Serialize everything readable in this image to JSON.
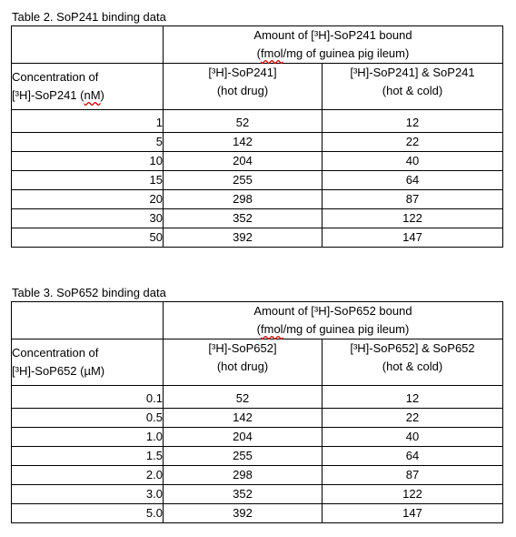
{
  "table2": {
    "caption": "Table 2. SoP241 binding data",
    "amount_header_line1": "Amount of [³H]-SoP241 bound",
    "amount_header_line2_pre": "(",
    "amount_header_line2_fmol": "fmol",
    "amount_header_line2_post": "/mg of guinea pig ileum)",
    "conc_header_line1": "Concentration of",
    "conc_header_line2_pre": "[³H]-SoP241 (",
    "conc_header_line2_unit": "nM",
    "conc_header_line2_post": ")",
    "col_hot_line1": "[³H]-SoP241]",
    "col_hot_line2": "(hot drug)",
    "col_cold_line1": "[³H]-SoP241] & SoP241",
    "col_cold_line2": "(hot & cold)",
    "rows": [
      {
        "conc": "1",
        "hot": "52",
        "cold": "12"
      },
      {
        "conc": "5",
        "hot": "142",
        "cold": "22"
      },
      {
        "conc": "10",
        "hot": "204",
        "cold": "40"
      },
      {
        "conc": "15",
        "hot": "255",
        "cold": "64"
      },
      {
        "conc": "20",
        "hot": "298",
        "cold": "87"
      },
      {
        "conc": "30",
        "hot": "352",
        "cold": "122"
      },
      {
        "conc": "50",
        "hot": "392",
        "cold": "147"
      }
    ]
  },
  "table3": {
    "caption": "Table 3. SoP652 binding data",
    "amount_header_line1": "Amount of [³H]-SoP652 bound",
    "amount_header_line2_pre": "(",
    "amount_header_line2_fmol": "fmol",
    "amount_header_line2_post": "/mg of guinea pig ileum)",
    "conc_header_line1": "Concentration of",
    "conc_header_line2": "[³H]-SoP652 (µM)",
    "col_hot_line1": "[³H]-SoP652]",
    "col_hot_line2": "(hot drug)",
    "col_cold_line1": "[³H]-SoP652] & SoP652",
    "col_cold_line2": "(hot & cold)",
    "rows": [
      {
        "conc": "0.1",
        "hot": "52",
        "cold": "12"
      },
      {
        "conc": "0.5",
        "hot": "142",
        "cold": "22"
      },
      {
        "conc": "1.0",
        "hot": "204",
        "cold": "40"
      },
      {
        "conc": "1.5",
        "hot": "255",
        "cold": "64"
      },
      {
        "conc": "2.0",
        "hot": "298",
        "cold": "87"
      },
      {
        "conc": "3.0",
        "hot": "352",
        "cold": "122"
      },
      {
        "conc": "5.0",
        "hot": "392",
        "cold": "147"
      }
    ]
  },
  "colors": {
    "text": "#000000",
    "border": "#000000",
    "spellcheck": "#d00000"
  }
}
